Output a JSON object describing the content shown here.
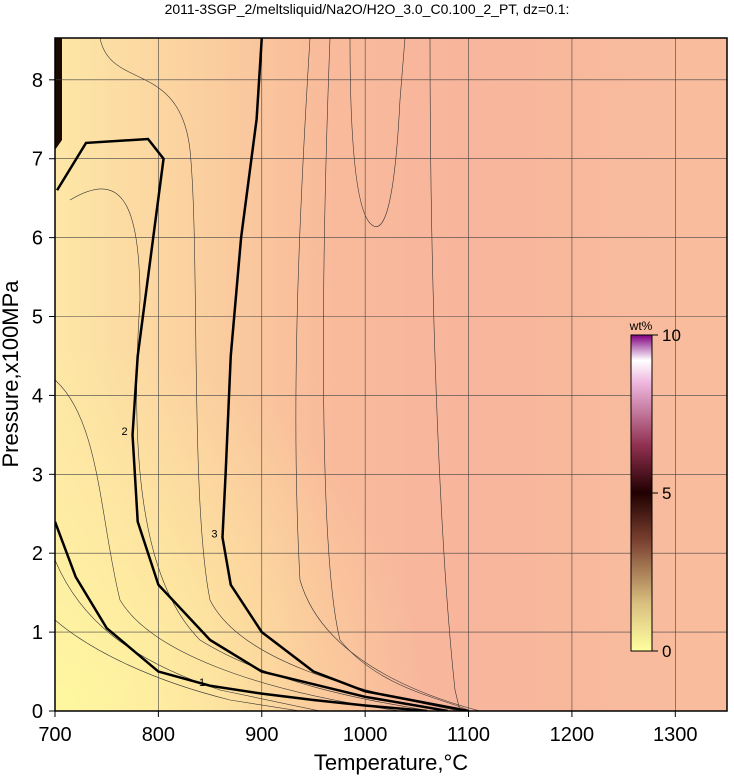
{
  "chart_data": {
    "type": "contour",
    "title": "2011-3SGP_2/meltsliquid/Na2O/H2O_3.0_C0.100_2_PT, dz=0.1:",
    "x_label": "Temperature,°C",
    "y_label": "Pressure,x100MPa",
    "xlim": [
      700,
      1350
    ],
    "ylim": [
      0,
      8.53
    ],
    "xticks": [
      700,
      800,
      900,
      1000,
      1100,
      1200,
      1300
    ],
    "yticks": [
      0,
      1,
      2,
      3,
      4,
      5,
      6,
      7,
      8
    ],
    "grid": true,
    "series": [
      {
        "name": "1",
        "color": "#000000",
        "x": [
          700,
          720,
          750,
          800,
          850,
          900,
          950,
          1000,
          1060
        ],
        "y": [
          2.4,
          1.7,
          1.05,
          0.5,
          0.32,
          0.22,
          0.14,
          0.07,
          0
        ]
      },
      {
        "name": "2",
        "color": "#000000",
        "x": [
          702,
          730,
          790,
          805,
          795,
          780,
          775,
          780,
          800,
          850,
          900,
          1000,
          1080
        ],
        "y": [
          6.6,
          7.2,
          7.25,
          7.0,
          6.0,
          4.5,
          3.5,
          2.4,
          1.6,
          0.9,
          0.5,
          0.18,
          0
        ]
      },
      {
        "name": "3",
        "color": "#000000",
        "x": [
          900,
          895,
          880,
          870,
          865,
          862,
          870,
          900,
          950,
          1000,
          1100
        ],
        "y": [
          8.53,
          7.5,
          6.0,
          4.5,
          3.0,
          2.2,
          1.6,
          1.0,
          0.5,
          0.25,
          0
        ]
      }
    ],
    "colorbar": {
      "label": "wt%",
      "lim": [
        0,
        10
      ],
      "ticks": [
        0,
        5,
        10
      ]
    }
  }
}
